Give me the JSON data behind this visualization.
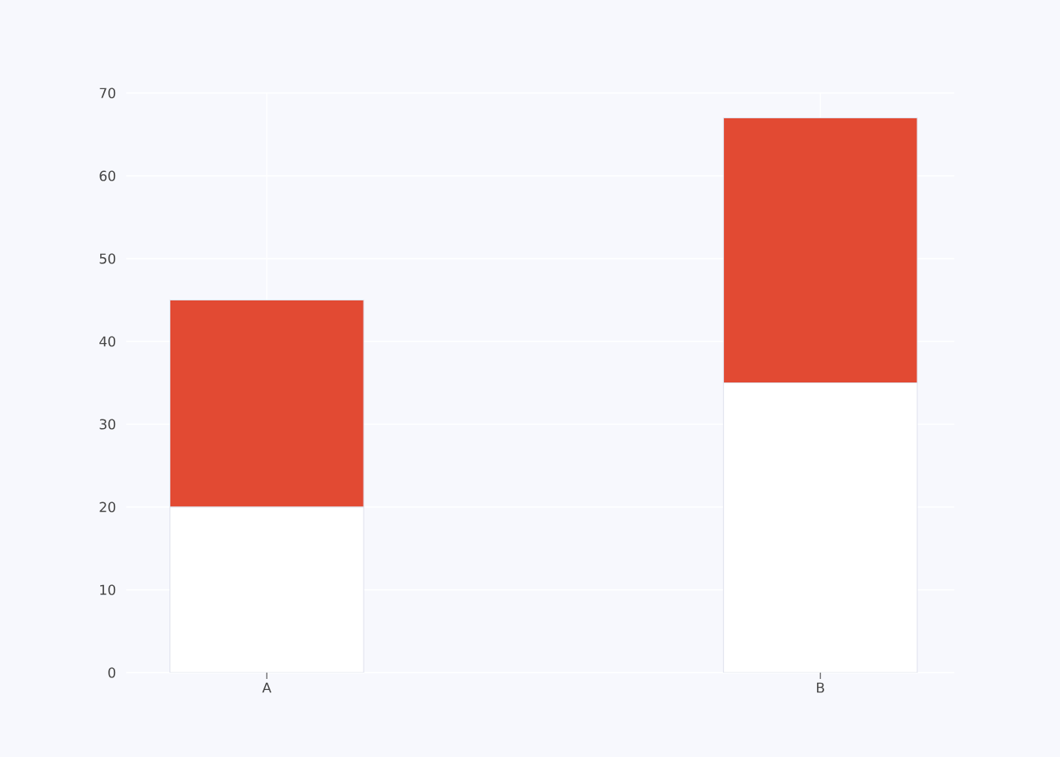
{
  "chart_data": {
    "type": "bar",
    "stacked": true,
    "categories": [
      "A",
      "B"
    ],
    "series": [
      {
        "color": "#ffffff",
        "values": [
          20,
          35
        ]
      },
      {
        "color": "#e24a33",
        "values": [
          25,
          32
        ]
      }
    ],
    "ylim": [
      0,
      70
    ],
    "yticks": [
      0,
      10,
      20,
      30,
      40,
      50,
      60,
      70
    ],
    "grid": true
  }
}
